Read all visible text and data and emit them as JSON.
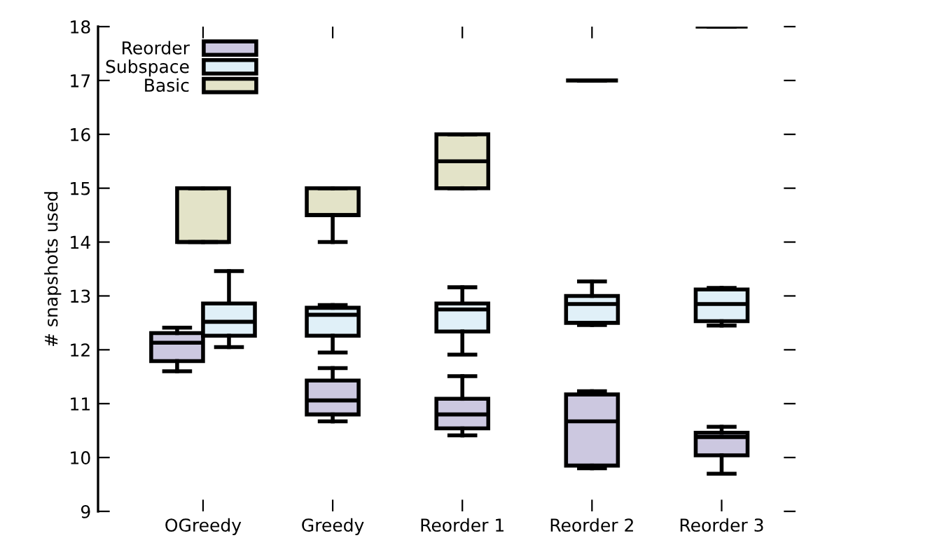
{
  "chart_data": {
    "type": "box",
    "ylabel": "# snapshots used",
    "categories": [
      "OGreedy",
      "Greedy",
      "Reorder 1",
      "Reorder 2",
      "Reorder 3"
    ],
    "ylim": [
      9,
      18
    ],
    "yticks": [
      9,
      10,
      11,
      12,
      13,
      14,
      15,
      16,
      17,
      18
    ],
    "grid": false,
    "legend": "top left",
    "series": [
      {
        "name": "Reorder",
        "color": "#ccc8e0",
        "boxes": [
          {
            "low": 11.6,
            "q1": 11.79,
            "median": 12.13,
            "q3": 12.31,
            "high": 12.41
          },
          {
            "low": 10.67,
            "q1": 10.8,
            "median": 11.06,
            "q3": 11.43,
            "high": 11.66
          },
          {
            "low": 10.41,
            "q1": 10.54,
            "median": 10.8,
            "q3": 11.09,
            "high": 11.51
          },
          {
            "low": 9.8,
            "q1": 9.85,
            "median": 10.67,
            "q3": 11.17,
            "high": 11.23
          },
          {
            "low": 9.7,
            "q1": 10.04,
            "median": 10.38,
            "q3": 10.46,
            "high": 10.57
          }
        ]
      },
      {
        "name": "Subspace",
        "color": "#e0f0f8",
        "boxes": [
          {
            "low": 12.05,
            "q1": 12.26,
            "median": 12.52,
            "q3": 12.86,
            "high": 13.46
          },
          {
            "low": 11.95,
            "q1": 12.26,
            "median": 12.65,
            "q3": 12.78,
            "high": 12.83
          },
          {
            "low": 11.91,
            "q1": 12.34,
            "median": 12.75,
            "q3": 12.86,
            "high": 13.16
          },
          {
            "low": 12.46,
            "q1": 12.5,
            "median": 12.85,
            "q3": 13.0,
            "high": 13.27
          },
          {
            "low": 12.45,
            "q1": 12.53,
            "median": 12.85,
            "q3": 13.12,
            "high": 13.15
          }
        ]
      },
      {
        "name": "Basic",
        "color": "#e3e3c8",
        "boxes": [
          {
            "low": 14,
            "q1": 14,
            "median": 14,
            "q3": 15,
            "high": 15
          },
          {
            "low": 14,
            "q1": 14.5,
            "median": 14.5,
            "q3": 15,
            "high": 15
          },
          {
            "low": 15,
            "q1": 15,
            "median": 15.5,
            "q3": 16,
            "high": 16
          },
          {
            "low": 17,
            "q1": 17,
            "median": 17,
            "q3": 17,
            "high": 17
          },
          {
            "low": 18,
            "q1": 18,
            "median": 18,
            "q3": 18,
            "high": 18
          }
        ]
      }
    ]
  }
}
